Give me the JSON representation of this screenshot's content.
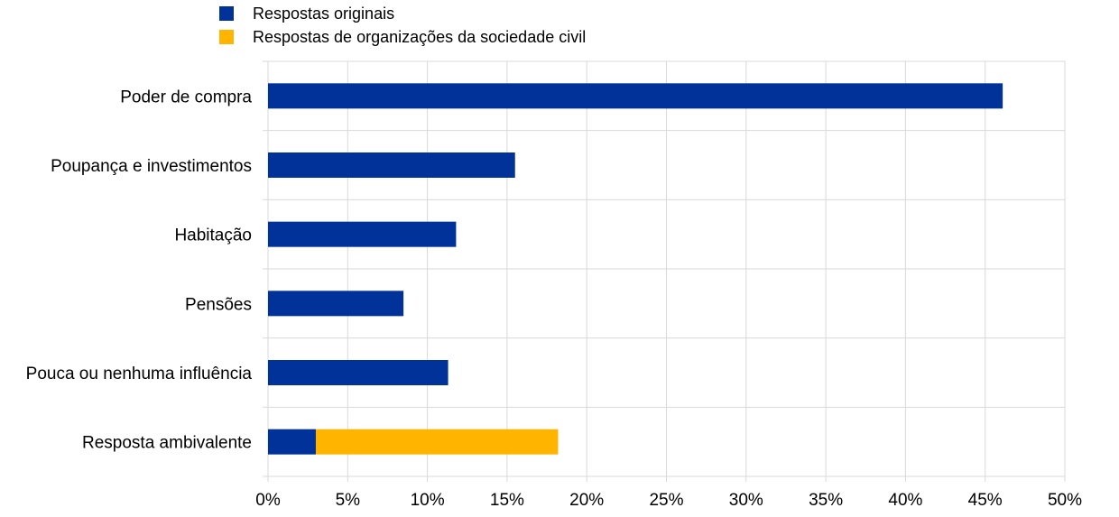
{
  "chart_data": {
    "type": "bar",
    "orientation": "horizontal",
    "stacked": true,
    "categories": [
      "Poder de compra",
      "Poupança e investimentos",
      "Habitação",
      "Pensões",
      "Pouca ou nenhuma influência",
      "Resposta ambivalente"
    ],
    "series": [
      {
        "name": "Respostas originais",
        "color": "#003299",
        "values": [
          46.1,
          15.5,
          11.8,
          8.5,
          11.3,
          3.0
        ]
      },
      {
        "name": "Respostas de organizações da sociedade civil",
        "color": "#FFB400",
        "values": [
          0,
          0,
          0,
          0,
          0,
          15.2
        ]
      }
    ],
    "xlim": [
      0,
      50
    ],
    "xticks": [
      "0%",
      "5%",
      "10%",
      "15%",
      "20%",
      "25%",
      "30%",
      "35%",
      "40%",
      "45%",
      "50%"
    ],
    "grid": true,
    "legend": "top-left"
  }
}
